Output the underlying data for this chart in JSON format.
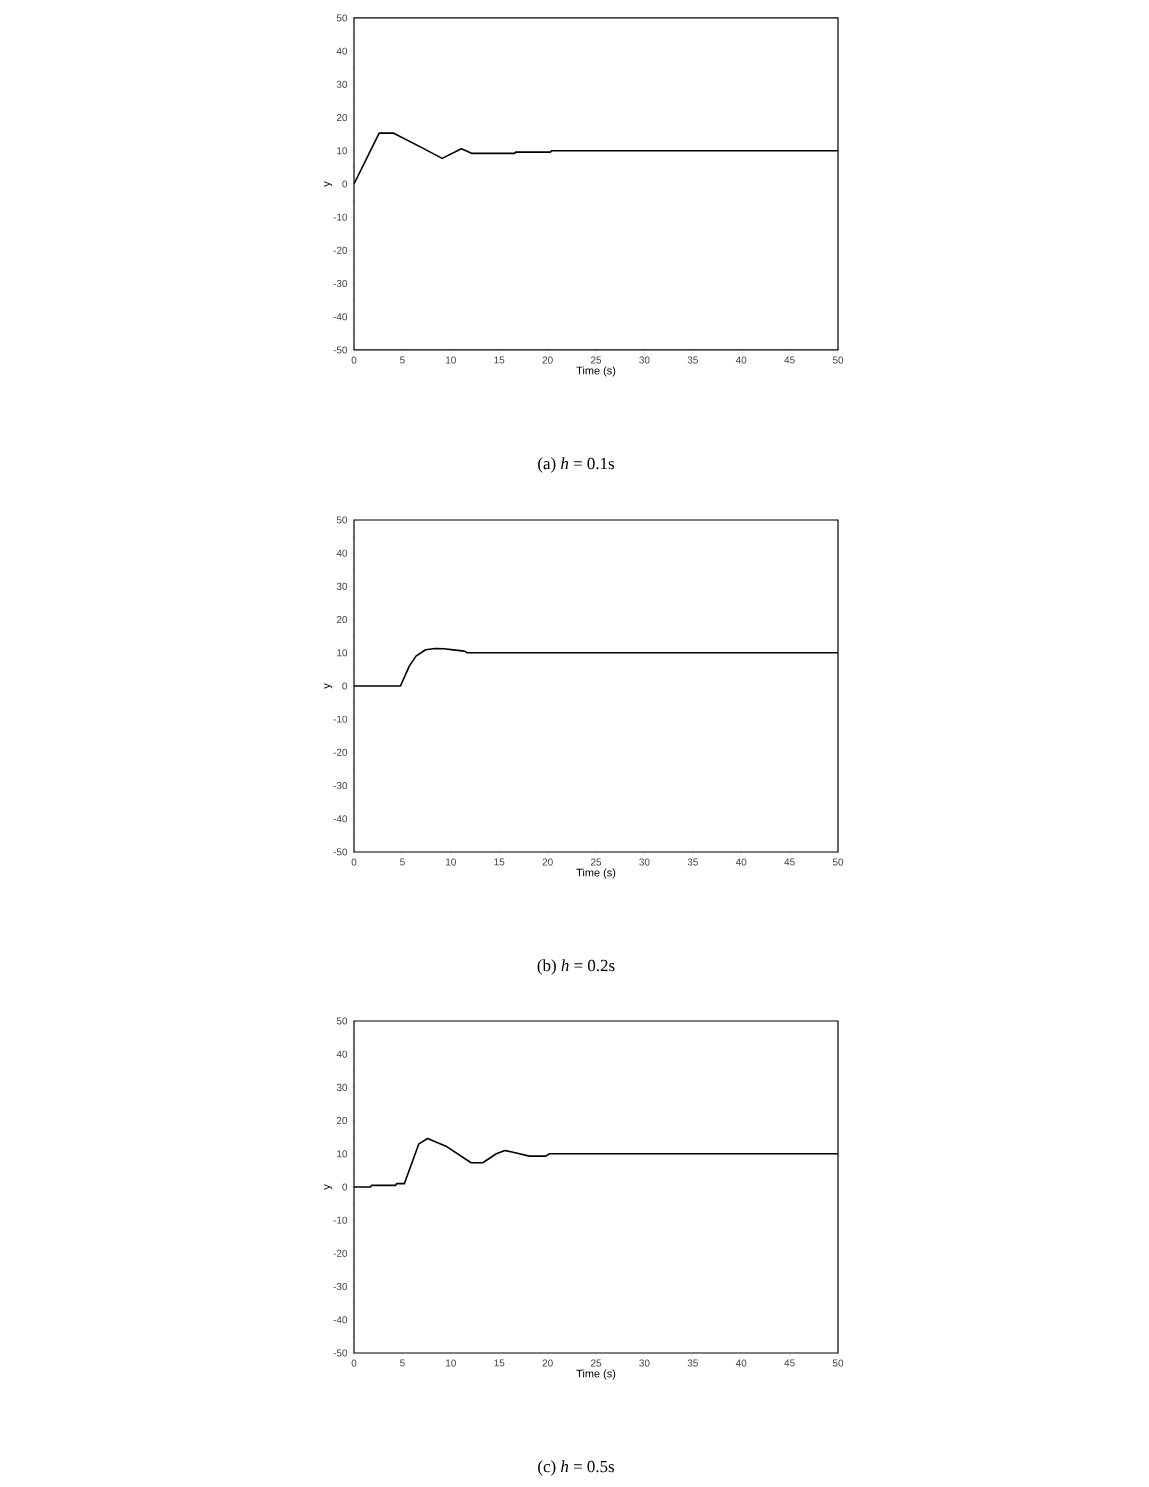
{
  "chart_data": [
    {
      "type": "line",
      "title": "(a) *h* = 0.1s",
      "xlabel": "Time (s)",
      "ylabel": "y",
      "color": "#000000",
      "x": [
        0,
        2.6,
        4.1,
        7.1,
        9.1,
        11.1,
        12.2,
        16.6,
        16.7,
        20.3,
        20.4,
        50
      ],
      "values": [
        0,
        15.3,
        15.3,
        10.8,
        7.7,
        10.6,
        9.2,
        9.2,
        9.6,
        9.6,
        10,
        10
      ],
      "xlim": [
        0,
        50
      ],
      "ylim": [
        -50,
        50
      ],
      "xticks": [
        0,
        5,
        10,
        15,
        20,
        25,
        30,
        35,
        40,
        45,
        50
      ],
      "yticks": [
        -50,
        -40,
        -30,
        -20,
        -10,
        0,
        10,
        20,
        30,
        40,
        50
      ]
    },
    {
      "type": "line",
      "title": "(b) *h* = 0.2s",
      "xlabel": "Time (s)",
      "ylabel": "y",
      "color": "#000000",
      "x": [
        0,
        4.8,
        5.7,
        6.4,
        7.4,
        8.4,
        9.3,
        10.5,
        11.4,
        11.7,
        50
      ],
      "values": [
        0,
        0,
        5.9,
        9.0,
        10.9,
        11.3,
        11.2,
        10.8,
        10.5,
        10,
        10
      ],
      "xlim": [
        0,
        50
      ],
      "ylim": [
        -50,
        50
      ],
      "xticks": [
        0,
        5,
        10,
        15,
        20,
        25,
        30,
        35,
        40,
        45,
        50
      ],
      "yticks": [
        -50,
        -40,
        -30,
        -20,
        -10,
        0,
        10,
        20,
        30,
        40,
        50
      ]
    },
    {
      "type": "line",
      "title": "(c) *h* = 0.5s",
      "xlabel": "Time (s)",
      "ylabel": "y",
      "color": "#000000",
      "x": [
        0,
        1.7,
        1.8,
        4.3,
        4.4,
        5.2,
        6.7,
        7.6,
        9.5,
        12.1,
        13.3,
        14.7,
        15.6,
        16.2,
        17.1,
        18.1,
        19.8,
        20.2,
        50
      ],
      "values": [
        0,
        0,
        0.5,
        0.5,
        1.0,
        1.0,
        13.0,
        14.6,
        12.3,
        7.3,
        7.3,
        10.0,
        11.0,
        10.6,
        10.0,
        9.3,
        9.3,
        10,
        10
      ],
      "xlim": [
        0,
        50
      ],
      "ylim": [
        -50,
        50
      ],
      "xticks": [
        0,
        5,
        10,
        15,
        20,
        25,
        30,
        35,
        40,
        45,
        50
      ],
      "yticks": [
        -50,
        -40,
        -30,
        -20,
        -10,
        0,
        10,
        20,
        30,
        40,
        50
      ]
    }
  ]
}
